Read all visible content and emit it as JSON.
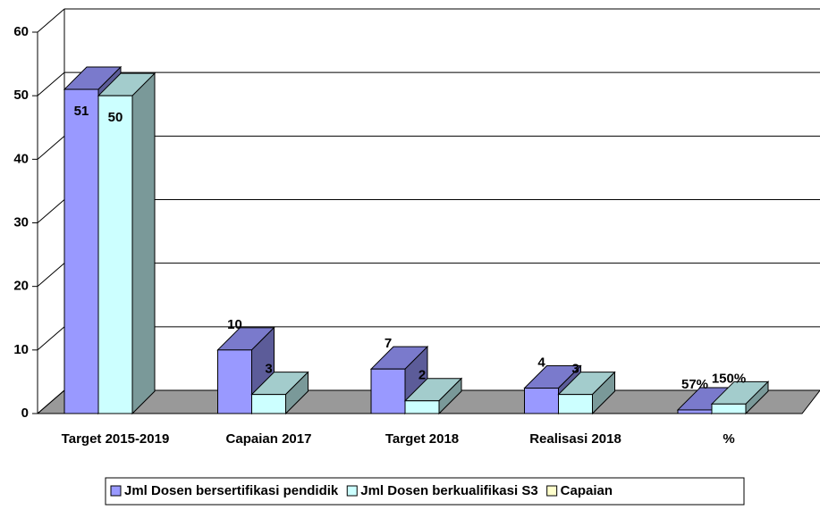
{
  "chart_data": {
    "type": "bar3d",
    "categories": [
      "Target 2015-2019",
      "Capaian 2017",
      "Target 2018",
      "Realisasi 2018",
      "%"
    ],
    "series": [
      {
        "name": "Jml Dosen bersertifikasi pendidik",
        "color": "#9999ff",
        "values": [
          51,
          10,
          7,
          4,
          0.57
        ],
        "value_labels": [
          "51",
          "10",
          "7",
          "4",
          "57%"
        ]
      },
      {
        "name": "Jml Dosen berkualifikasi S3",
        "color": "#ccffff",
        "values": [
          50,
          3,
          2,
          3,
          1.5
        ],
        "value_labels": [
          "50",
          "3",
          "2",
          "3",
          "150%"
        ]
      },
      {
        "name": "Capaian",
        "color": "#ffffcc",
        "values": [
          null,
          null,
          null,
          null,
          null
        ]
      }
    ],
    "ylim": [
      0,
      60
    ],
    "yticks": [
      0,
      10,
      20,
      30,
      40,
      50,
      60
    ],
    "grid": true,
    "legend": "bottom"
  }
}
